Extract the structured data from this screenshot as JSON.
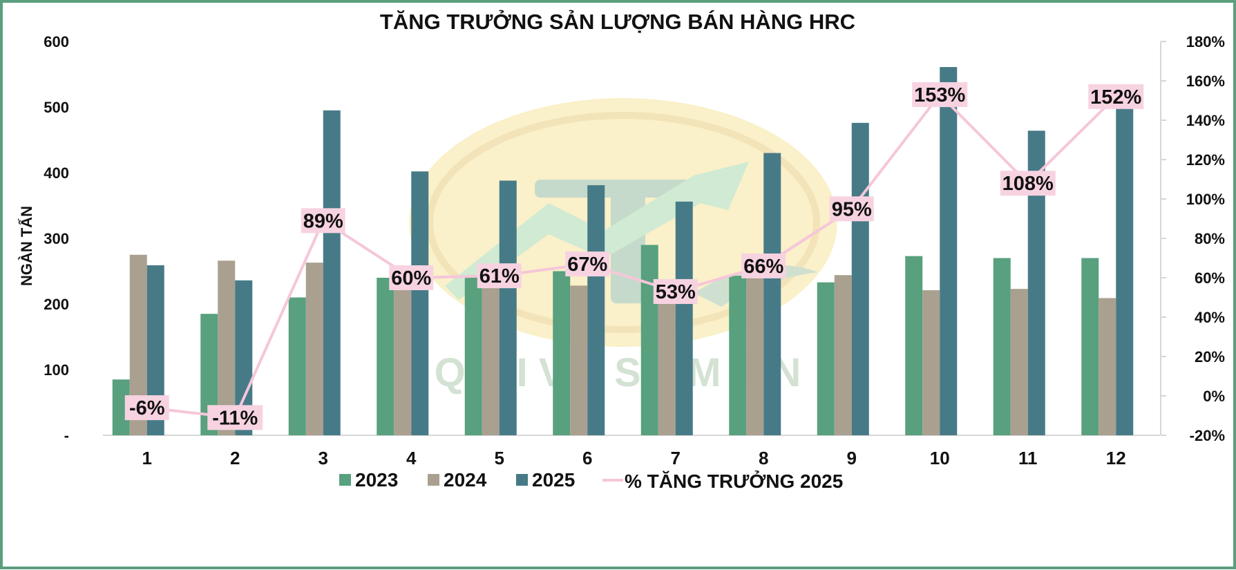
{
  "chart_data": {
    "type": "bar",
    "title": "TĂNG TRƯỞNG SẢN LƯỢNG BÁN HÀNG HRC",
    "ylabel": "NGÀN TẤN",
    "categories": [
      "1",
      "2",
      "3",
      "4",
      "5",
      "6",
      "7",
      "8",
      "9",
      "10",
      "11",
      "12"
    ],
    "ylim": [
      0,
      600
    ],
    "y_ticks": [
      "-",
      "100",
      "200",
      "300",
      "400",
      "500",
      "600"
    ],
    "y2lim": [
      -0.2,
      1.8
    ],
    "y2_ticks": [
      "-20%",
      "0%",
      "20%",
      "40%",
      "60%",
      "80%",
      "100%",
      "120%",
      "140%",
      "160%",
      "180%"
    ],
    "series": [
      {
        "name": "2023",
        "type": "bar",
        "color": "#58a07e",
        "values": [
          85,
          185,
          210,
          240,
          243,
          250,
          290,
          243,
          233,
          273,
          270,
          270
        ]
      },
      {
        "name": "2024",
        "type": "bar",
        "color": "#a9a08f",
        "values": [
          275,
          266,
          263,
          245,
          240,
          228,
          205,
          240,
          244,
          221,
          223,
          209
        ]
      },
      {
        "name": "2025",
        "type": "bar",
        "color": "#477a87",
        "values": [
          259,
          236,
          495,
          402,
          388,
          381,
          356,
          430,
          476,
          561,
          464,
          505
        ]
      },
      {
        "name": "% TĂNG TRƯỞNG 2025",
        "type": "line",
        "axis": "right",
        "color": "#f6c6d9",
        "values": [
          -0.06,
          -0.11,
          0.89,
          0.6,
          0.61,
          0.67,
          0.53,
          0.66,
          0.95,
          1.53,
          1.08,
          1.52
        ],
        "labels": [
          "-6%",
          "-11%",
          "89%",
          "60%",
          "61%",
          "67%",
          "53%",
          "66%",
          "95%",
          "153%",
          "108%",
          "152%"
        ]
      }
    ],
    "grid": false,
    "legend_position": "bottom"
  },
  "colors": {
    "frame_border": "#5b9e7e",
    "label_box": "#f7d3e1"
  },
  "watermark_icon": "logo-watermark-icon",
  "watermark_text": "QUIVESTMAN"
}
